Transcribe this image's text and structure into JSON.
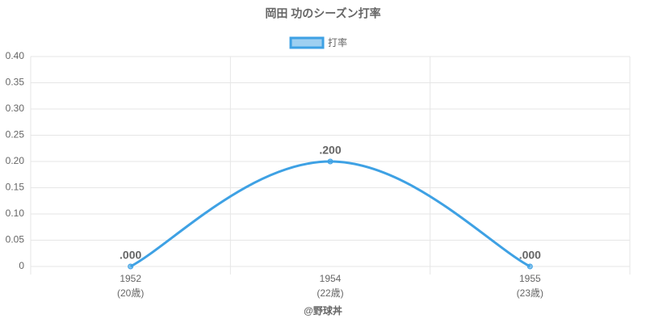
{
  "chart_data": {
    "type": "line",
    "title": "岡田 功のシーズン打率",
    "categories": [
      "1952",
      "1954",
      "1955"
    ],
    "category_sublabels": [
      "(20歳)",
      "(22歳)",
      "(23歳)"
    ],
    "x_label": "@野球丼",
    "series": [
      {
        "name": "打率",
        "color": "#3ea1e4",
        "values": [
          0,
          0.2,
          0
        ],
        "value_labels": [
          ".000",
          ".200",
          ".000"
        ]
      }
    ],
    "ylim": [
      0,
      0.4
    ],
    "yticks": [
      0,
      {
        "value": 0.05,
        "label": "0.05"
      },
      {
        "value": 0.1,
        "label": "0.10"
      },
      {
        "value": 0.15,
        "label": "0.15"
      },
      {
        "value": 0.2,
        "label": "0.20"
      },
      {
        "value": 0.25,
        "label": "0.25"
      },
      {
        "value": 0.3,
        "label": "0.30"
      },
      {
        "value": 0.35,
        "label": "0.35"
      },
      {
        "value": 0.4,
        "label": "0.40"
      }
    ],
    "grid": true,
    "legend": "top"
  }
}
